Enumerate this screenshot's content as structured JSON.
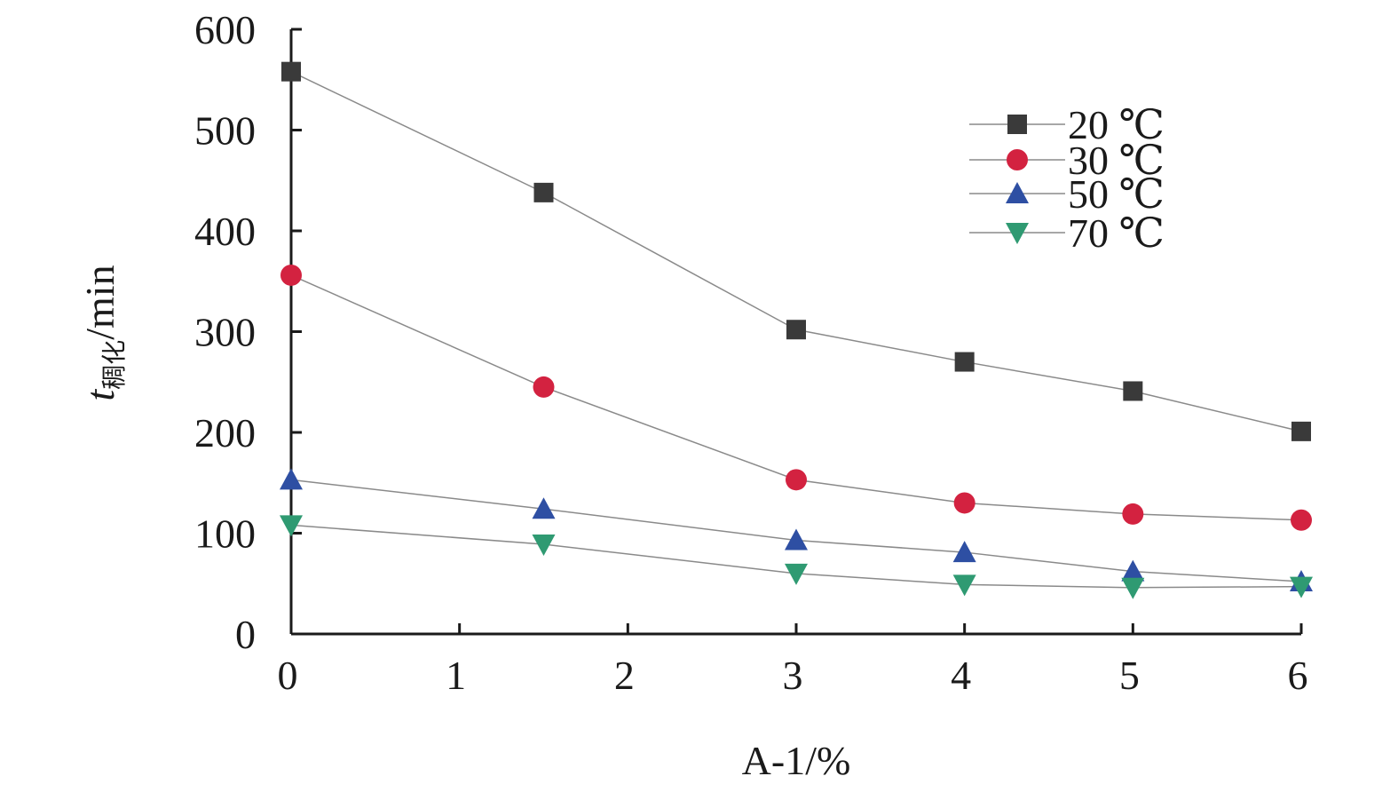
{
  "chart_data": {
    "type": "line",
    "xlabel": "A-1/%",
    "ylabel": {
      "main": "t",
      "subscript": "稠化",
      "unit": "/min"
    },
    "xlim": [
      0,
      6
    ],
    "ylim": [
      0,
      600
    ],
    "x_ticks": [
      "0",
      "1",
      "2",
      "3",
      "4",
      "5",
      "6"
    ],
    "y_ticks": [
      "0",
      "100",
      "200",
      "300",
      "400",
      "500",
      "600"
    ],
    "grid": false,
    "legend_position": "top-right",
    "x": [
      0,
      1.5,
      3,
      4,
      5,
      6
    ],
    "series": [
      {
        "name": "20 ℃",
        "marker": "square",
        "color": "#3a3a3a",
        "values": [
          558,
          438,
          302,
          270,
          241,
          201
        ]
      },
      {
        "name": "30 ℃",
        "marker": "circle",
        "color": "#d32240",
        "values": [
          356,
          245,
          153,
          130,
          119,
          113
        ]
      },
      {
        "name": "50 ℃",
        "marker": "triangle-up",
        "color": "#2e4fa3",
        "values": [
          153,
          124,
          93,
          81,
          62,
          52
        ]
      },
      {
        "name": "70 ℃",
        "marker": "triangle-down",
        "color": "#2f9a72",
        "values": [
          108,
          89,
          60,
          49,
          46,
          47
        ]
      }
    ],
    "line_color": "#8a8a8a"
  }
}
